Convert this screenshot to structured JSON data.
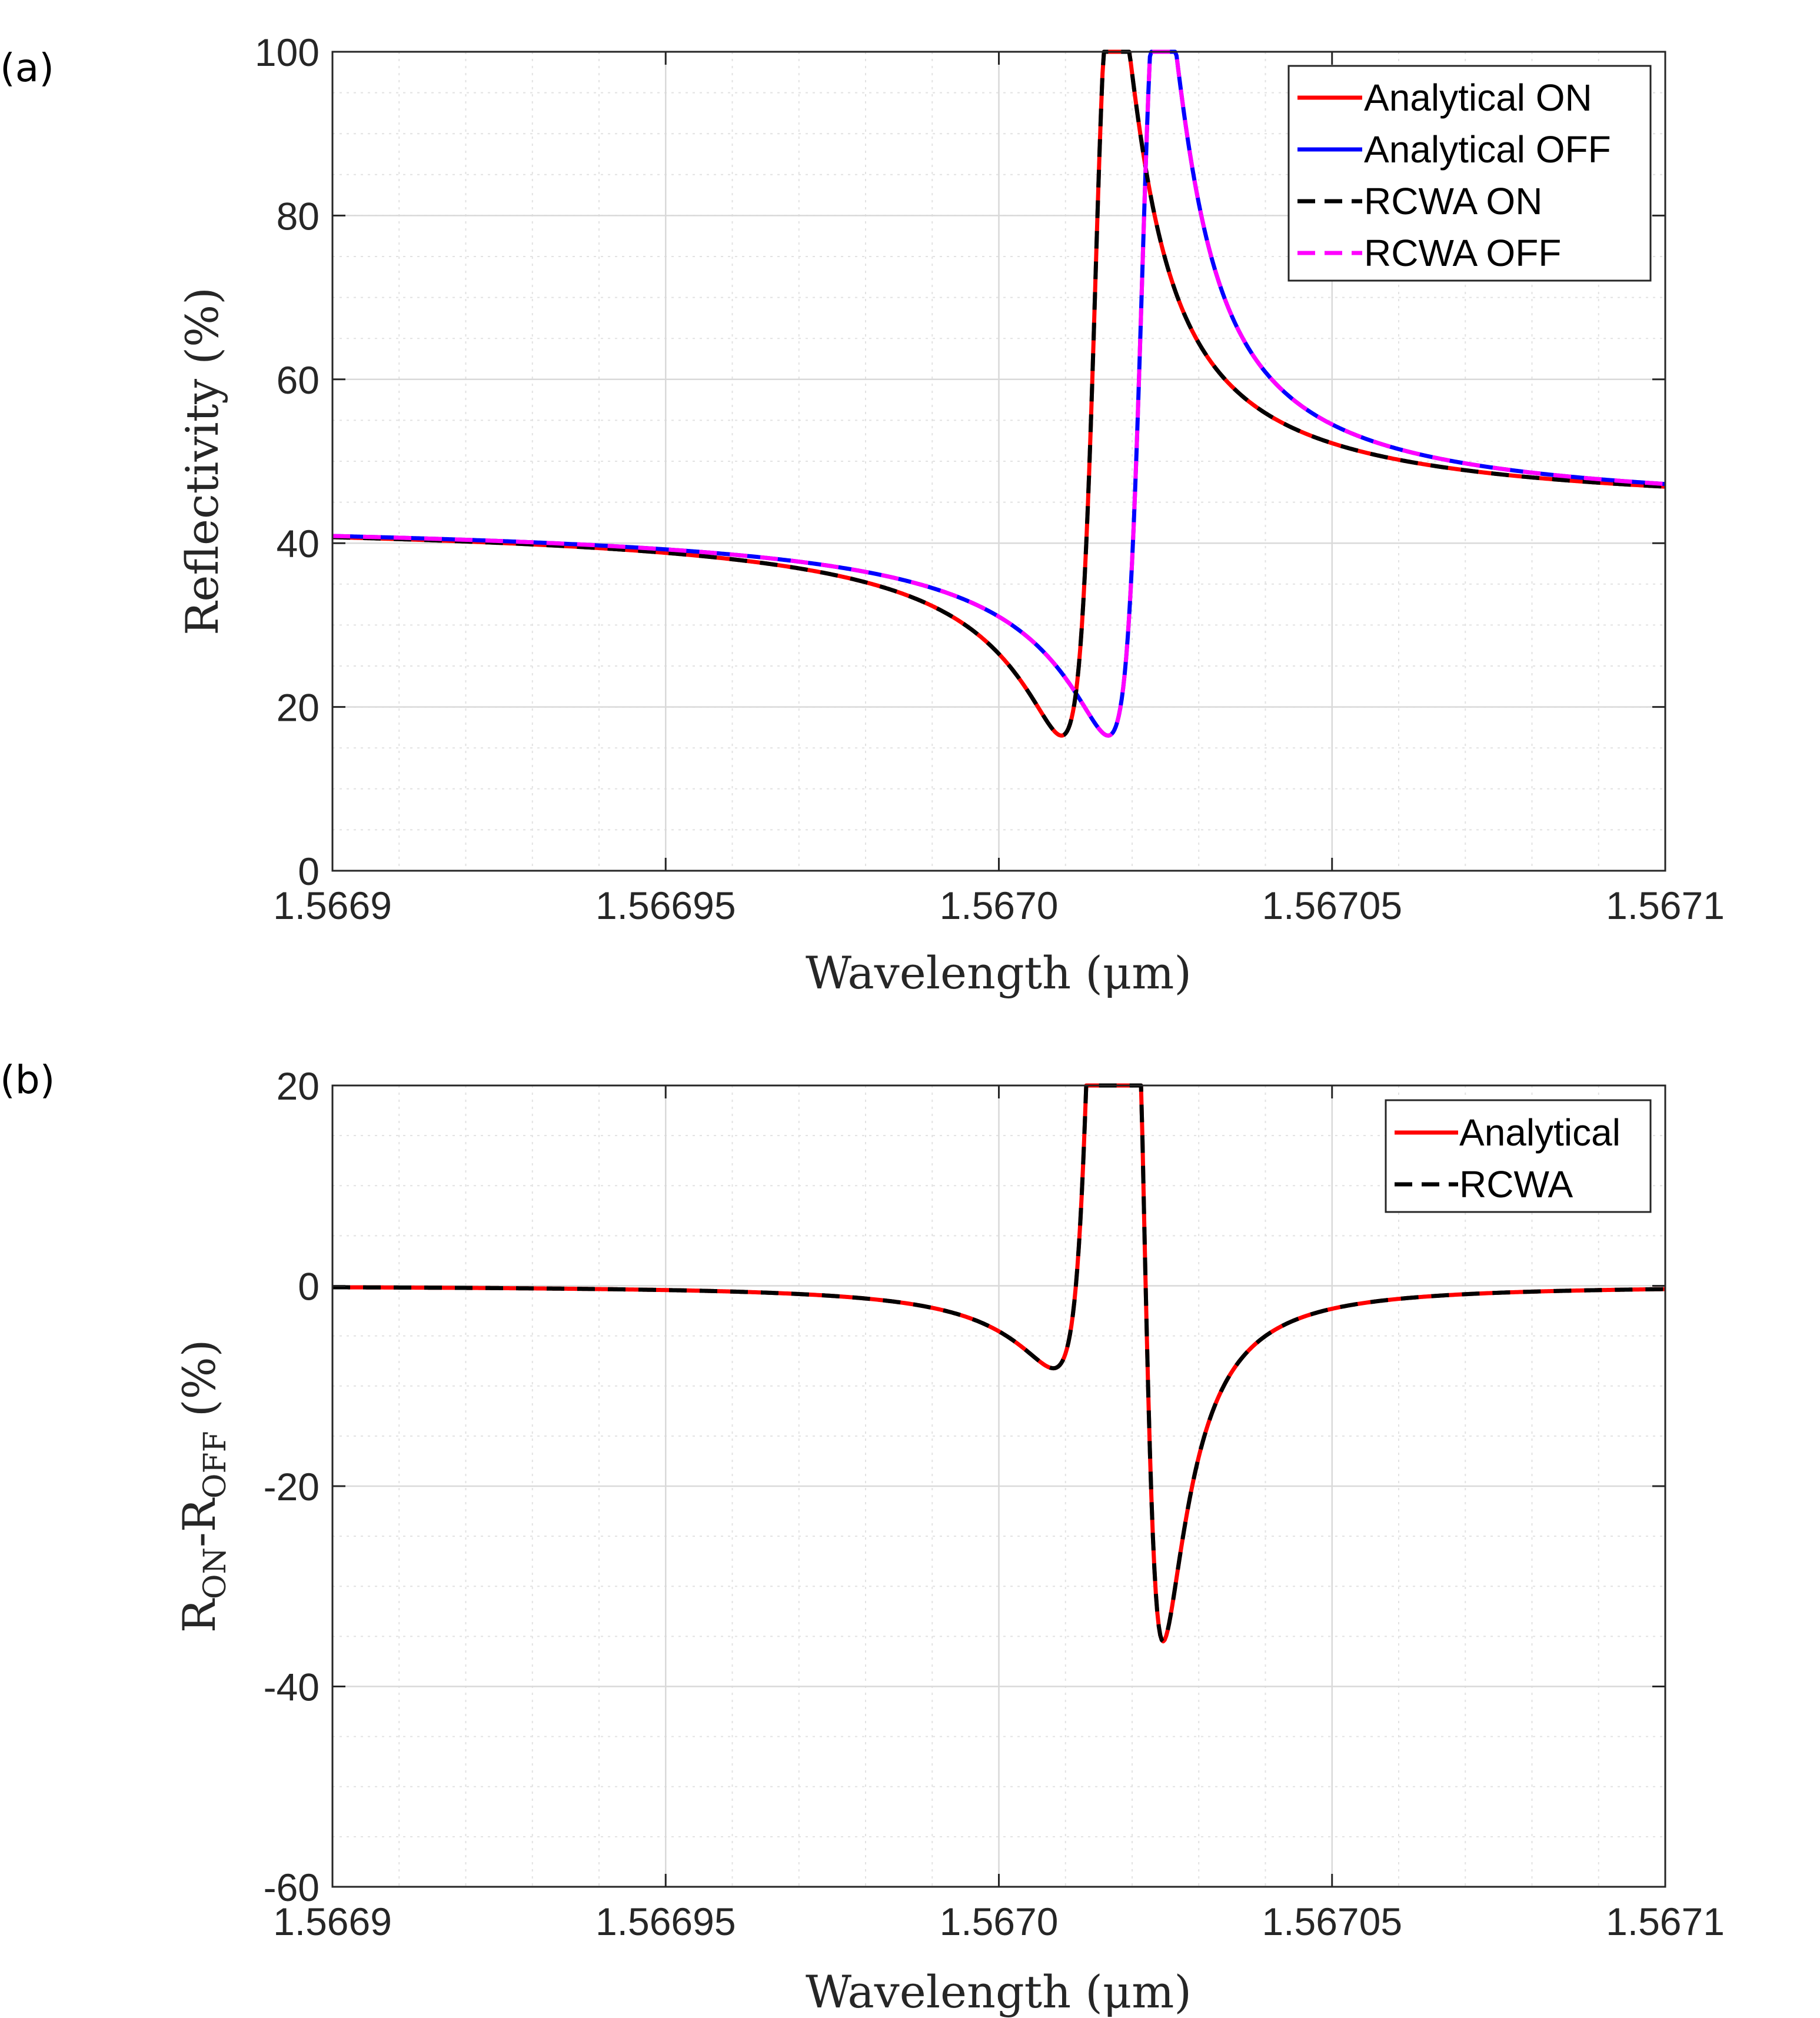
{
  "chart_data": [
    {
      "type": "line",
      "panel_label": "(a)",
      "xlabel": "Wavelength (μm)",
      "ylabel": "Reflectivity (%)",
      "xlim": [
        1.5669,
        1.5671
      ],
      "ylim": [
        0,
        100
      ],
      "xticks": [
        1.5669,
        1.56695,
        1.567,
        1.56705,
        1.5671
      ],
      "xtick_labels": [
        "1.5669",
        "1.56695",
        "1.5670",
        "1.56705",
        "1.5671"
      ],
      "yticks": [
        0,
        20,
        40,
        60,
        80,
        100
      ],
      "ytick_labels": [
        "0",
        "20",
        "40",
        "60",
        "80",
        "100"
      ],
      "grid": true,
      "legend_position": "top-right",
      "series": [
        {
          "name": "Analytical ON",
          "color": "#ff0000",
          "style": "solid",
          "model": "fano",
          "x0": 1.567015,
          "half_width": 3.5e-06,
          "q": 1.6,
          "background": 16.5,
          "amplitude": 26.8
        },
        {
          "name": "Analytical OFF",
          "color": "#0000ff",
          "style": "solid",
          "model": "fano",
          "x0": 1.567022,
          "half_width": 3.5e-06,
          "q": 1.6,
          "background": 16.5,
          "amplitude": 26.8
        },
        {
          "name": "RCWA ON",
          "color": "#000000",
          "style": "dashed",
          "model": "fano",
          "x0": 1.567015,
          "half_width": 3.5e-06,
          "q": 1.6,
          "background": 16.5,
          "amplitude": 26.8
        },
        {
          "name": "RCWA OFF",
          "color": "#ff00ff",
          "style": "dashed",
          "model": "fano",
          "x0": 1.567022,
          "half_width": 3.5e-06,
          "q": 1.6,
          "background": 16.5,
          "amplitude": 26.8
        }
      ]
    },
    {
      "type": "line",
      "panel_label": "(b)",
      "xlabel": "Wavelength (μm)",
      "ylabel": "R",
      "ylabel_sub1": "ON",
      "ylabel_mid": "-R",
      "ylabel_sub2": "OFF",
      "ylabel_unit": " (%)",
      "xlim": [
        1.5669,
        1.5671
      ],
      "ylim": [
        -60,
        20
      ],
      "xticks": [
        1.5669,
        1.56695,
        1.567,
        1.56705,
        1.5671
      ],
      "xtick_labels": [
        "1.5669",
        "1.56695",
        "1.5670",
        "1.56705",
        "1.5671"
      ],
      "yticks": [
        -60,
        -40,
        -20,
        0,
        20
      ],
      "ytick_labels": [
        "-60",
        "-40",
        "-20",
        "0",
        "20"
      ],
      "grid": true,
      "legend_position": "top-right",
      "series": [
        {
          "name": "Analytical",
          "color": "#ff0000",
          "style": "solid",
          "model": "difference"
        },
        {
          "name": "RCWA",
          "color": "#000000",
          "style": "dashed",
          "model": "difference"
        }
      ]
    }
  ]
}
